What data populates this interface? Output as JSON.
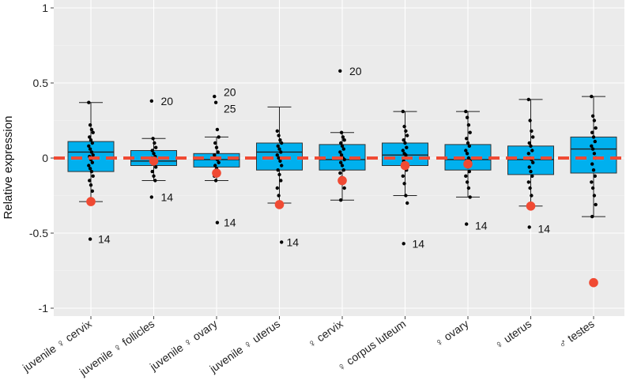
{
  "chart_data": {
    "type": "box",
    "title": "",
    "xlabel": "",
    "ylabel": "Relative expression",
    "ylim": [
      -1.1,
      1.07
    ],
    "yticks": [
      1,
      0.5,
      0,
      -0.5,
      -1
    ],
    "ytick_labels": [
      "1",
      "0.5",
      "0",
      "-0.5",
      "-1"
    ],
    "reference_line": 0,
    "colors": {
      "box": "#00b0ee",
      "reference": "#f04a33",
      "marker": "#f04a33",
      "point": "#000000"
    },
    "categories": [
      "juvenile ♀ cervix",
      "juvenile ♀ follicles",
      "juvenile ♀ ovary",
      "juvenile ♀ uterus",
      "♀ cervix",
      "♀ corpus luteum",
      "♀ ovary",
      "♀ uterus",
      "♂ testes"
    ],
    "boxes": [
      {
        "category": "juvenile ♀ cervix",
        "q1": -0.09,
        "median": 0.04,
        "q3": 0.11,
        "whisker_low": -0.29,
        "whisker_high": 0.37,
        "points": [
          0.37,
          0.22,
          0.19,
          0.17,
          0.14,
          0.12,
          0.1,
          0.08,
          0.06,
          0.04,
          0.02,
          0.01,
          -0.01,
          -0.03,
          -0.05,
          -0.07,
          -0.09,
          -0.12,
          -0.15,
          -0.18,
          -0.22,
          -0.29,
          -0.54
        ],
        "marker": -0.29,
        "annotations": [
          {
            "text": "14",
            "y": -0.54
          }
        ]
      },
      {
        "category": "juvenile ♀ follicles",
        "q1": -0.05,
        "median": -0.02,
        "q3": 0.05,
        "whisker_low": -0.15,
        "whisker_high": 0.13,
        "points": [
          0.38,
          0.13,
          0.1,
          0.07,
          0.05,
          0.03,
          0.01,
          0.0,
          -0.02,
          -0.04,
          -0.06,
          -0.09,
          -0.12,
          -0.15,
          -0.26
        ],
        "marker": -0.02,
        "annotations": [
          {
            "text": "20",
            "y": 0.38
          },
          {
            "text": "14",
            "y": -0.26
          }
        ]
      },
      {
        "category": "juvenile ♀ ovary",
        "q1": -0.06,
        "median": -0.01,
        "q3": 0.03,
        "whisker_low": -0.15,
        "whisker_high": 0.14,
        "points": [
          0.41,
          0.37,
          0.19,
          0.14,
          0.1,
          0.07,
          0.04,
          0.02,
          0.0,
          -0.01,
          -0.03,
          -0.05,
          -0.07,
          -0.09,
          -0.12,
          -0.15,
          -0.43
        ],
        "marker": -0.1,
        "annotations": [
          {
            "text": "20",
            "y": 0.44
          },
          {
            "text": "25",
            "y": 0.33
          },
          {
            "text": "14",
            "y": -0.43
          }
        ]
      },
      {
        "category": "juvenile ♀ uterus",
        "q1": -0.08,
        "median": 0.04,
        "q3": 0.1,
        "whisker_low": -0.3,
        "whisker_high": 0.34,
        "points": [
          0.18,
          0.15,
          0.12,
          0.1,
          0.08,
          0.06,
          0.04,
          0.02,
          0.0,
          -0.02,
          -0.05,
          -0.08,
          -0.11,
          -0.15,
          -0.2,
          -0.25,
          -0.3,
          -0.56
        ],
        "marker": -0.31,
        "annotations": [
          {
            "text": "14",
            "y": -0.56
          }
        ]
      },
      {
        "category": "♀ cervix",
        "q1": -0.08,
        "median": -0.01,
        "q3": 0.09,
        "whisker_low": -0.28,
        "whisker_high": 0.17,
        "points": [
          0.58,
          0.17,
          0.14,
          0.12,
          0.1,
          0.08,
          0.06,
          0.04,
          0.02,
          0.0,
          -0.01,
          -0.03,
          -0.05,
          -0.08,
          -0.1,
          -0.13,
          -0.16,
          -0.2,
          -0.28
        ],
        "marker": -0.15,
        "annotations": [
          {
            "text": "20",
            "y": 0.58
          }
        ]
      },
      {
        "category": "♀ corpus luteum",
        "q1": -0.05,
        "median": 0.02,
        "q3": 0.1,
        "whisker_low": -0.25,
        "whisker_high": 0.31,
        "points": [
          0.31,
          0.21,
          0.18,
          0.15,
          0.12,
          0.1,
          0.07,
          0.05,
          0.03,
          0.02,
          0.0,
          -0.02,
          -0.05,
          -0.08,
          -0.12,
          -0.17,
          -0.25,
          -0.3,
          -0.57
        ],
        "marker": -0.05,
        "annotations": [
          {
            "text": "14",
            "y": -0.57
          }
        ]
      },
      {
        "category": "♀ ovary",
        "q1": -0.08,
        "median": -0.01,
        "q3": 0.09,
        "whisker_low": -0.26,
        "whisker_high": 0.31,
        "points": [
          0.31,
          0.27,
          0.22,
          0.17,
          0.13,
          0.1,
          0.08,
          0.05,
          0.03,
          0.0,
          -0.02,
          -0.04,
          -0.06,
          -0.09,
          -0.12,
          -0.16,
          -0.2,
          -0.26,
          -0.44
        ],
        "marker": -0.04,
        "annotations": [
          {
            "text": "14",
            "y": -0.45
          }
        ]
      },
      {
        "category": "♀ uterus",
        "q1": -0.11,
        "median": -0.01,
        "q3": 0.08,
        "whisker_low": -0.32,
        "whisker_high": 0.39,
        "points": [
          0.39,
          0.25,
          0.18,
          0.14,
          0.1,
          0.08,
          0.05,
          0.03,
          0.0,
          -0.01,
          -0.03,
          -0.06,
          -0.09,
          -0.12,
          -0.16,
          -0.2,
          -0.25,
          -0.32,
          -0.46
        ],
        "marker": -0.32,
        "annotations": [
          {
            "text": "14",
            "y": -0.47
          }
        ]
      },
      {
        "category": "♂ testes",
        "q1": -0.1,
        "median": 0.06,
        "q3": 0.14,
        "whisker_low": -0.39,
        "whisker_high": 0.41,
        "points": [
          0.41,
          0.28,
          0.25,
          0.2,
          0.17,
          0.14,
          0.11,
          0.08,
          0.06,
          0.03,
          0.0,
          -0.04,
          -0.08,
          -0.12,
          -0.16,
          -0.2,
          -0.25,
          -0.31,
          -0.39
        ],
        "marker": -0.83,
        "annotations": []
      }
    ]
  }
}
